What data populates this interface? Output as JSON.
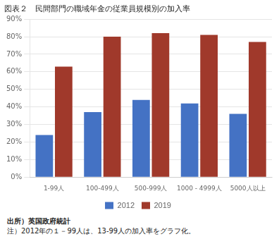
{
  "chart_data": {
    "type": "bar",
    "title": "図表２　民間部門の職域年金の従業員規模別の加入率",
    "categories": [
      "1-99人",
      "100-499人",
      "500-999人",
      "1000 - 4999人",
      "5000人以上"
    ],
    "series": [
      {
        "name": "2012",
        "color": "#4472C4",
        "values": [
          24,
          37,
          44,
          42,
          36
        ]
      },
      {
        "name": "2019",
        "color": "#A0392B",
        "values": [
          63,
          80,
          82,
          81,
          77
        ]
      }
    ],
    "ylim": [
      0,
      90
    ],
    "yticks": [
      {
        "value": 0,
        "label": "0%"
      },
      {
        "value": 10,
        "label": "10%"
      },
      {
        "value": 20,
        "label": "20%"
      },
      {
        "value": 30,
        "label": "30%"
      },
      {
        "value": 40,
        "label": "40%"
      },
      {
        "value": 50,
        "label": "50%"
      },
      {
        "value": 60,
        "label": "60%"
      },
      {
        "value": 70,
        "label": "70%"
      },
      {
        "value": 80,
        "label": "80%"
      },
      {
        "value": 90,
        "label": "90%"
      }
    ],
    "grid": true,
    "legend": "bottom",
    "annotations": [
      "出所）英国政府統計",
      "注）2012年の１－99人は、13-99人の加入率をグラフ化。"
    ]
  }
}
